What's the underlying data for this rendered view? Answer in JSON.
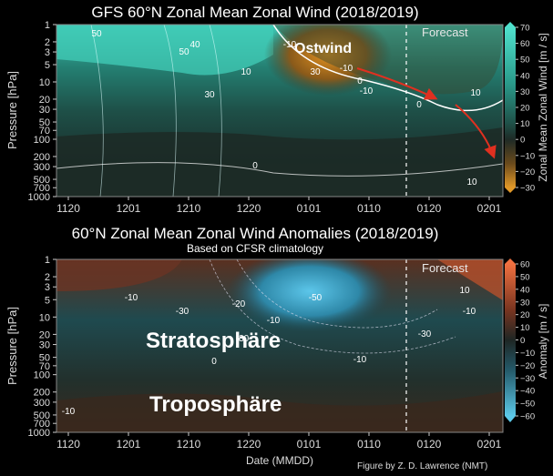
{
  "chart_data": [
    {
      "type": "heatmap",
      "title": "GFS 60°N Zonal Mean Zonal Wind (2018/2019)",
      "xlabel": "",
      "ylabel": "Pressure [hPa]",
      "x_ticks": [
        "1120",
        "1201",
        "1210",
        "1220",
        "0101",
        "0110",
        "0120",
        "0201"
      ],
      "y_ticks": [
        "1",
        "2",
        "3",
        "5",
        "10",
        "20",
        "30",
        "50",
        "70",
        "100",
        "200",
        "300",
        "500",
        "700",
        "1000"
      ],
      "y_scale": "log",
      "y_range_hPa": [
        1000,
        1
      ],
      "colorbar": {
        "label": "Zonal Mean Zonal Wind [m / s]",
        "ticks": [
          "70",
          "60",
          "50",
          "40",
          "30",
          "20",
          "10",
          "0",
          "−10",
          "−20",
          "−30"
        ],
        "range": [
          -30,
          70
        ]
      },
      "forecast_label": "Forecast",
      "contour_labels": [
        "50",
        "50",
        "40",
        "30",
        "10",
        "-10",
        "30",
        "-10",
        "0",
        "-10",
        "0",
        "10",
        "0",
        "10"
      ],
      "annotation": "Ostwind"
    },
    {
      "type": "heatmap",
      "title": "60°N Zonal Mean Zonal Wind Anomalies (2018/2019)",
      "subtitle": "Based on CFSR climatology",
      "xlabel": "Date (MMDD)",
      "ylabel": "Pressure [hPa]",
      "x_ticks": [
        "1120",
        "1201",
        "1210",
        "1220",
        "0101",
        "0110",
        "0120",
        "0201"
      ],
      "y_ticks": [
        "1",
        "2",
        "3",
        "5",
        "10",
        "20",
        "30",
        "50",
        "70",
        "100",
        "200",
        "300",
        "500",
        "700",
        "1000"
      ],
      "y_scale": "log",
      "y_range_hPa": [
        1000,
        1
      ],
      "colorbar": {
        "label": "Anomaly [m / s]",
        "ticks": [
          "60",
          "50",
          "40",
          "30",
          "20",
          "10",
          "0",
          "−10",
          "−20",
          "−30",
          "−40",
          "−50",
          "−60"
        ],
        "range": [
          -60,
          60
        ]
      },
      "forecast_label": "Forecast",
      "contour_labels": [
        "-10",
        "-30",
        "-50",
        "-30",
        "-20",
        "-10",
        "-30",
        "-10",
        "10",
        "-10",
        "0",
        "-10"
      ],
      "annotations": [
        "Stratosphäre",
        "Troposphäre"
      ]
    }
  ],
  "credit": "Figure by Z. D. Lawrence (NMT)"
}
